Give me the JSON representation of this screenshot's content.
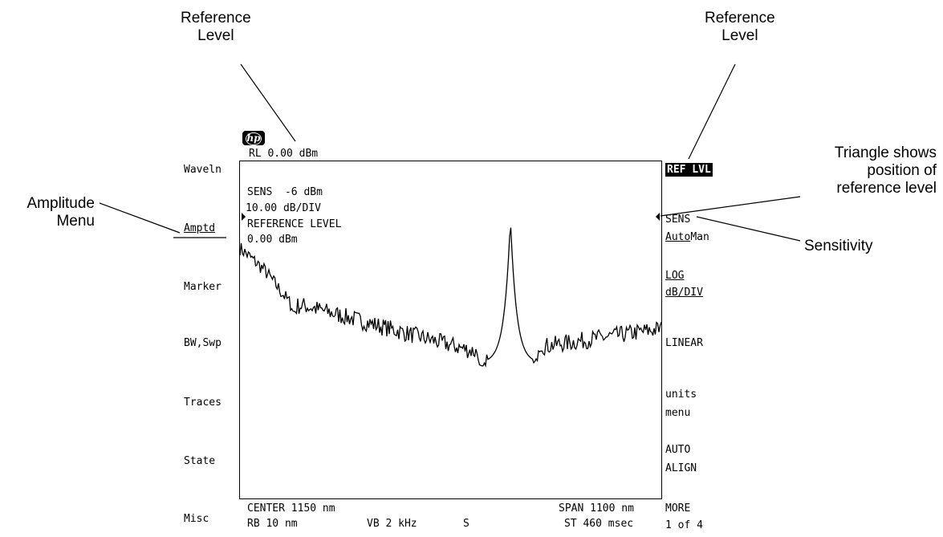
{
  "callouts": {
    "ref_level_left": "Reference\nLevel",
    "ref_level_right": "Reference\nLevel",
    "amplitude_menu": "Amplitude\nMenu",
    "triangle": "Triangle shows\nposition of\nreference level",
    "sensitivity": "Sensitivity"
  },
  "header": {
    "logo": "hp",
    "rl": "RL 0.00 dBm"
  },
  "screen": {
    "sens": "SENS  -6 dBm",
    "scale": "10.00 dB/DIV",
    "active_label": "REFERENCE LEVEL",
    "active_value": "0.00 dBm"
  },
  "left_menu": [
    "Waveln",
    "Amptd",
    "Marker",
    "BW,Swp",
    "Traces",
    "State",
    "Misc"
  ],
  "right_menu": {
    "ref_lvl": "REF LVL",
    "sens": "SENS",
    "auto": "Auto",
    "man": "Man",
    "log": "LOG",
    "db_div": "dB/DIV",
    "linear": "LINEAR",
    "units": "units",
    "menu": "menu",
    "auto_align_1": "AUTO",
    "auto_align_2": "ALIGN",
    "more": "MORE",
    "page": "1 of 4"
  },
  "footer": {
    "center": "CENTER 1150 nm",
    "span": "SPAN 1100 nm",
    "rb": "RB 10 nm",
    "vb": "VB 2 kHz",
    "s": "S",
    "st": "ST 460 msec"
  },
  "colors": {
    "ink": "#000000",
    "background": "#ffffff"
  },
  "icons": {
    "logo": "hp-logo",
    "left_marker": "triangle-right-icon",
    "right_marker": "triangle-left-icon"
  }
}
